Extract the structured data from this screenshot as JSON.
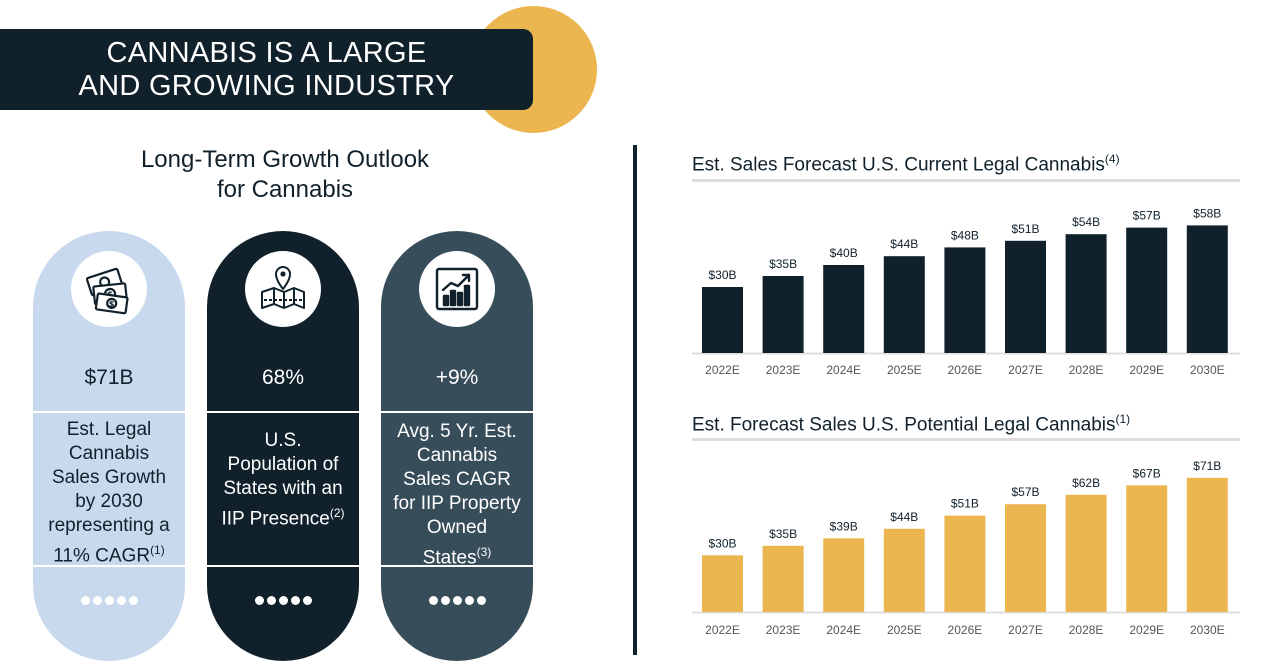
{
  "banner": {
    "line1": "CANNABIS IS A LARGE",
    "line2": "AND GROWING INDUSTRY"
  },
  "outlook": {
    "line1": "Long-Term Growth Outlook",
    "line2": "for Cannabis"
  },
  "colors": {
    "navy": "#10212c",
    "gold": "#ebb550",
    "light_blue": "#c8d9ee",
    "slate": "#374d5a",
    "gray_text": "#555555"
  },
  "pills": [
    {
      "icon": "money-bills-icon",
      "value": "$71B",
      "desc_lines": [
        "Est. Legal",
        "Cannabis",
        "Sales Growth",
        "by 2030",
        "representing a"
      ],
      "desc_last": "11% CAGR",
      "desc_last_sup": "(1)"
    },
    {
      "icon": "map-pin-icon",
      "value": "68%",
      "desc_lines": [
        "U.S.",
        "Population of",
        "States with an"
      ],
      "desc_last": "IIP Presence",
      "desc_last_sup": "(2)"
    },
    {
      "icon": "growth-chart-icon",
      "value": "+9%",
      "desc_lines": [
        "Avg. 5 Yr. Est.",
        "Cannabis",
        "Sales CAGR",
        "for IIP Property",
        "Owned"
      ],
      "desc_last": "States",
      "desc_last_sup": "(3)"
    }
  ],
  "chart_data": [
    {
      "type": "bar",
      "title": "Est. Sales Forecast U.S. Current Legal Cannabis",
      "title_sup": "(4)",
      "categories": [
        "2022E",
        "2023E",
        "2024E",
        "2025E",
        "2026E",
        "2027E",
        "2028E",
        "2029E",
        "2030E"
      ],
      "values": [
        30,
        35,
        40,
        44,
        48,
        51,
        54,
        57,
        58
      ],
      "labels": [
        "$30B",
        "$35B",
        "$40B",
        "$44B",
        "$48B",
        "$51B",
        "$54B",
        "$57B",
        "$58B"
      ],
      "ylim": [
        0,
        60
      ],
      "color": "#10212c"
    },
    {
      "type": "bar",
      "title": "Est. Forecast Sales U.S. Potential Legal Cannabis",
      "title_sup": "(1)",
      "categories": [
        "2022E",
        "2023E",
        "2024E",
        "2025E",
        "2026E",
        "2027E",
        "2028E",
        "2029E",
        "2030E"
      ],
      "values": [
        30,
        35,
        39,
        44,
        51,
        57,
        62,
        67,
        71
      ],
      "labels": [
        "$30B",
        "$35B",
        "$39B",
        "$44B",
        "$51B",
        "$57B",
        "$62B",
        "$67B",
        "$71B"
      ],
      "ylim": [
        0,
        73
      ],
      "color": "#ebb550"
    }
  ]
}
